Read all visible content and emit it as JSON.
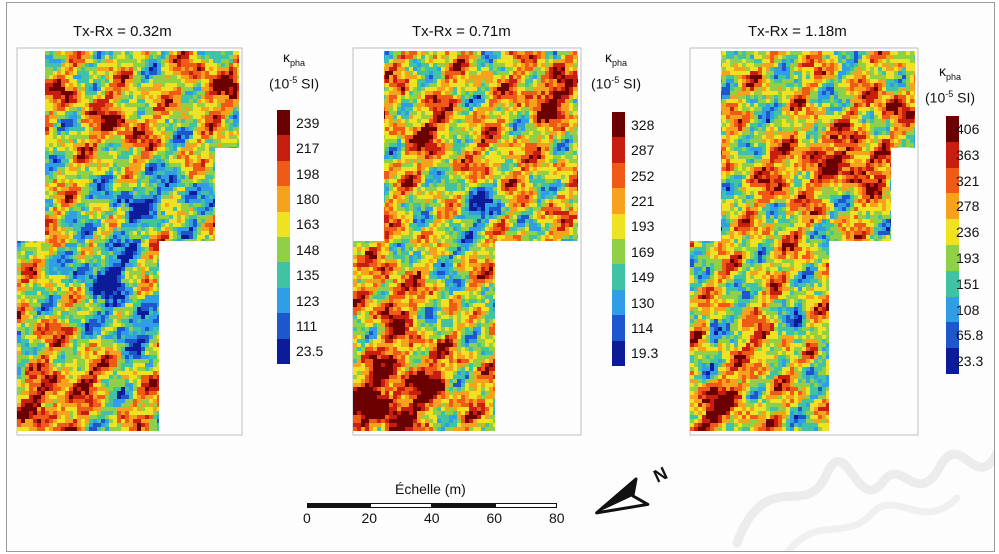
{
  "panels": [
    {
      "id": "p1",
      "title": "Tx-Rx = 0.32m",
      "legend_symbol": "κ",
      "legend_sub": "pha",
      "legend_units_prefix": "(10",
      "legend_units_exp": "-5",
      "legend_units_suffix": " SI)",
      "ticks": [
        "239",
        "217",
        "198",
        "180",
        "163",
        "148",
        "135",
        "123",
        "111",
        "23.5"
      ],
      "colors": [
        "#6b0000",
        "#c81e10",
        "#ef5a16",
        "#f7a21c",
        "#efe223",
        "#8fd046",
        "#3fc3a4",
        "#2f9ee6",
        "#1d56cd",
        "#0c1c98"
      ]
    },
    {
      "id": "p2",
      "title": "Tx-Rx = 0.71m",
      "legend_symbol": "κ",
      "legend_sub": "pha",
      "legend_units_prefix": "(10",
      "legend_units_exp": "-5",
      "legend_units_suffix": " SI)",
      "ticks": [
        "328",
        "287",
        "252",
        "221",
        "193",
        "169",
        "149",
        "130",
        "114",
        "19.3"
      ],
      "colors": [
        "#6b0000",
        "#c81e10",
        "#ef5a16",
        "#f7a21c",
        "#efe223",
        "#8fd046",
        "#3fc3a4",
        "#2f9ee6",
        "#1d56cd",
        "#0c1c98"
      ]
    },
    {
      "id": "p3",
      "title": "Tx-Rx = 1.18m",
      "legend_symbol": "κ",
      "legend_sub": "pha",
      "legend_units_prefix": "(10",
      "legend_units_exp": "-5",
      "legend_units_suffix": " SI)",
      "ticks": [
        "406",
        "363",
        "321",
        "278",
        "236",
        "193",
        "151",
        "108",
        "65.8",
        "23.3"
      ],
      "colors": [
        "#6b0000",
        "#c81e10",
        "#ef5a16",
        "#f7a21c",
        "#efe223",
        "#8fd046",
        "#3fc3a4",
        "#2f9ee6",
        "#1d56cd",
        "#0c1c98"
      ]
    }
  ],
  "scale_bar": {
    "title": "Échelle (m)",
    "ticks": [
      "0",
      "20",
      "40",
      "60",
      "80"
    ],
    "values": [
      0,
      20,
      40,
      60,
      80
    ]
  },
  "north_arrow": {
    "label": "N",
    "icon": "north-arrow-icon"
  }
}
